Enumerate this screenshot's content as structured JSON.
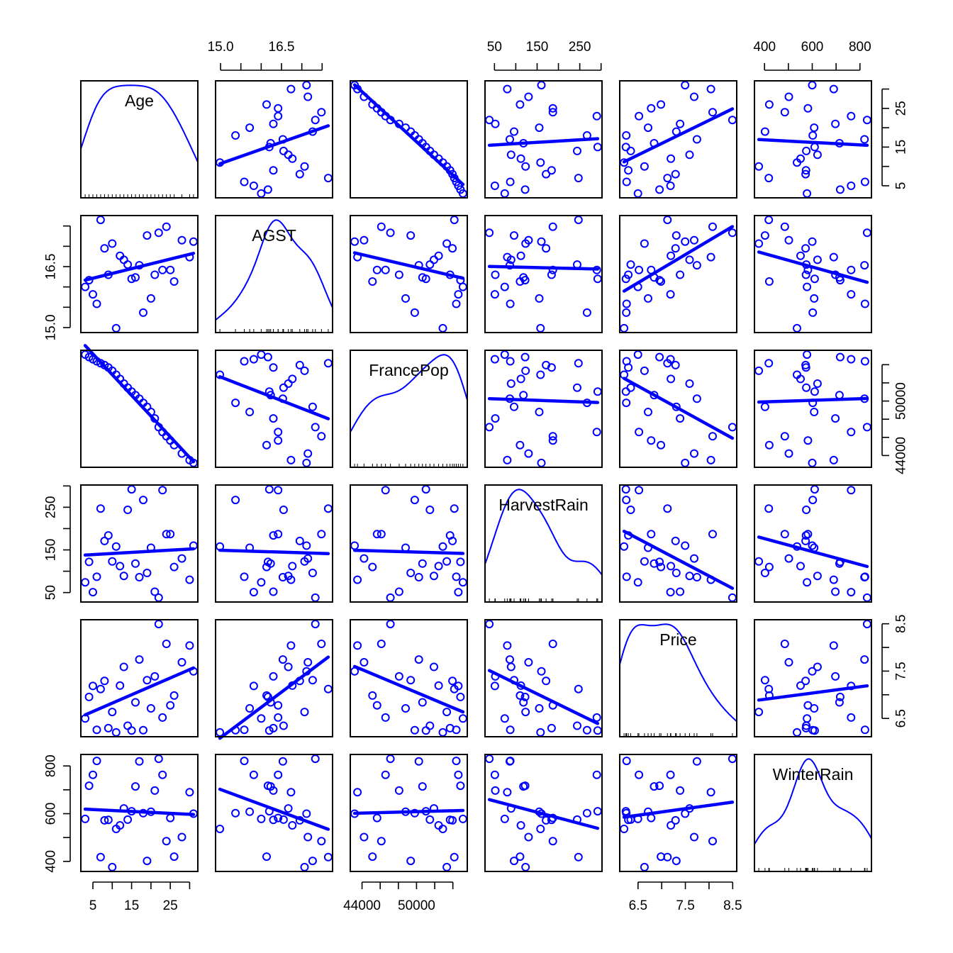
{
  "chart_data": {
    "type": "scatter",
    "title": "",
    "layout": {
      "kind": "scatterplot-matrix",
      "diagonal": "kernel-density-with-rug",
      "off_diagonal": "scatter-with-linear-fit",
      "point_symbol": "open-circle",
      "color": "#0000ff",
      "panel_origin": [
        114,
        114
      ],
      "panel_size": 165,
      "panel_step": 190,
      "range_expand": 0.04
    },
    "variables": [
      {
        "name": "Age",
        "label": "Age",
        "ticks": [
          5,
          10,
          15,
          20,
          25,
          30
        ],
        "tick_labels": [
          "5",
          "15",
          "25"
        ],
        "labeled_ticks": [
          5,
          15,
          25
        ]
      },
      {
        "name": "AGST",
        "label": "AGST",
        "ticks": [
          15.0,
          15.5,
          16.0,
          16.5,
          17.0,
          17.5
        ],
        "tick_labels": [
          "15.0",
          "16.5"
        ],
        "labeled_ticks": [
          15.0,
          16.5
        ]
      },
      {
        "name": "FrancePop",
        "label": "FrancePop",
        "ticks": [
          44000,
          46000,
          48000,
          50000,
          52000,
          54000
        ],
        "tick_labels": [
          "44000",
          "50000"
        ],
        "labeled_ticks": [
          44000,
          50000
        ]
      },
      {
        "name": "HarvestRain",
        "label": "HarvestRain",
        "ticks": [
          50,
          100,
          150,
          200,
          250,
          300
        ],
        "tick_labels": [
          "50",
          "150",
          "250"
        ],
        "labeled_ticks": [
          50,
          150,
          250
        ]
      },
      {
        "name": "Price",
        "label": "Price",
        "ticks": [
          6.5,
          7.0,
          7.5,
          8.0,
          8.5
        ],
        "tick_labels": [
          "6.5",
          "7.5",
          "8.5"
        ],
        "labeled_ticks": [
          6.5,
          7.5,
          8.5
        ]
      },
      {
        "name": "WinterRain",
        "label": "WinterRain",
        "ticks": [
          400,
          500,
          600,
          700,
          800
        ],
        "tick_labels": [
          "400",
          "600",
          "800"
        ],
        "labeled_ticks": [
          400,
          600,
          800
        ]
      }
    ],
    "axes_placement": {
      "top": [
        "AGST",
        "HarvestRain",
        "WinterRain"
      ],
      "bottom": [
        "Age",
        "FrancePop",
        "Price"
      ],
      "left": [
        "AGST",
        "HarvestRain",
        "WinterRain"
      ],
      "right": [
        "Age",
        "FrancePop",
        "Price"
      ]
    },
    "observations": {
      "Age": [
        31,
        30,
        28,
        26,
        25,
        24,
        23,
        22,
        21,
        20,
        19,
        18,
        17,
        16,
        15,
        14,
        13,
        12,
        11,
        10,
        9,
        8,
        7,
        6,
        5,
        4,
        3
      ],
      "AGST": [
        17.1167,
        16.7333,
        17.15,
        16.1333,
        16.4167,
        17.4833,
        16.4167,
        17.3333,
        16.3,
        15.7167,
        17.2667,
        15.3667,
        16.5333,
        16.2333,
        16.2,
        16.55,
        16.6667,
        16.7667,
        14.9833,
        17.0667,
        16.3,
        16.95,
        17.65,
        15.5833,
        15.8167,
        16.1667,
        16.0
      ],
      "FrancePop": [
        43183.57,
        43495.03,
        44217.86,
        45152.25,
        45653.81,
        46128.64,
        46584.0,
        47128.0,
        48088.67,
        48798.99,
        49356.94,
        49801.82,
        50254.97,
        50650.41,
        51034.41,
        51470.28,
        51918.39,
        52431.65,
        52894.18,
        53332.08,
        53689.61,
        53955.04,
        54159.05,
        54378.36,
        54602.19,
        54836.21,
        55110.24
      ],
      "HarvestRain": [
        160,
        80,
        130,
        110,
        187,
        187,
        290,
        38,
        52,
        155,
        96,
        267,
        86,
        118,
        292,
        244,
        89,
        112,
        158,
        123,
        184,
        171,
        247,
        87,
        51,
        122,
        74
      ],
      "Price": [
        7.495,
        8.0393,
        7.6858,
        6.9845,
        6.7772,
        8.0757,
        6.5188,
        8.4937,
        7.388,
        6.7127,
        7.3094,
        6.2518,
        7.7443,
        6.8398,
        6.2435,
        6.3459,
        7.5883,
        7.1934,
        6.2049,
        6.6367,
        6.2941,
        7.292,
        7.1211,
        6.2587,
        7.186,
        6.9541,
        6.4979
      ],
      "WinterRain": [
        600,
        690,
        502,
        420,
        582,
        485,
        763,
        830,
        697,
        608,
        402,
        602,
        819,
        714,
        610,
        575,
        622,
        551,
        536,
        376,
        574,
        572,
        418,
        821,
        763,
        717,
        578
      ]
    },
    "n": 27,
    "xlabel": "",
    "ylabel": "",
    "grid": false,
    "legend": null
  }
}
